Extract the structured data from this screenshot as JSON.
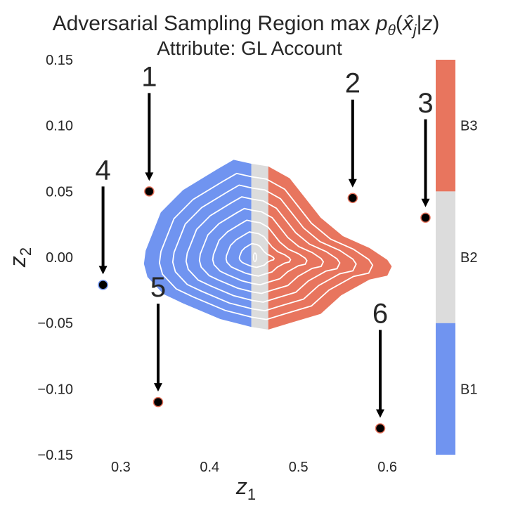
{
  "chart_data": {
    "type": "contour",
    "title_line1": "Adversarial Sampling Region max",
    "title_math": {
      "p": "p",
      "theta": "θ",
      "open": "(",
      "xhat": "x̂",
      "j": "j",
      "bar": "|",
      "z": "z",
      "close": ")"
    },
    "title_line2": "Attribute: GL Account",
    "xlabel": "z",
    "xlabel_sub": "1",
    "ylabel": "z",
    "ylabel_sub": "2",
    "xlim": [
      0.255,
      0.645
    ],
    "ylim": [
      -0.15,
      0.15
    ],
    "x_ticks": [
      {
        "value": 0.3,
        "label": "0.3"
      },
      {
        "value": 0.4,
        "label": "0.4"
      },
      {
        "value": 0.5,
        "label": "0.5"
      },
      {
        "value": 0.6,
        "label": "0.6"
      }
    ],
    "y_ticks": [
      {
        "value": 0.15,
        "label": "0.15"
      },
      {
        "value": 0.1,
        "label": "0.10"
      },
      {
        "value": 0.05,
        "label": "0.05"
      },
      {
        "value": 0.0,
        "label": "0.00"
      },
      {
        "value": -0.05,
        "label": "−0.05"
      },
      {
        "value": -0.1,
        "label": "−0.10"
      },
      {
        "value": -0.15,
        "label": "−0.15"
      }
    ],
    "grid": false,
    "colors": {
      "B1": "#7094f0",
      "B2": "#dcdcdc",
      "B3": "#e8755e",
      "contour": "#ffffff",
      "marker": "#000000",
      "arrow": "#000000"
    },
    "density_region": {
      "split_B1_B2": 0.447,
      "split_B2_B3": 0.466,
      "outline": [
        [
          0.409,
          0.067
        ],
        [
          0.427,
          0.074
        ],
        [
          0.447,
          0.071
        ],
        [
          0.466,
          0.069
        ],
        [
          0.49,
          0.06
        ],
        [
          0.525,
          0.03
        ],
        [
          0.55,
          0.016
        ],
        [
          0.58,
          0.007
        ],
        [
          0.6,
          -0.002
        ],
        [
          0.605,
          -0.007
        ],
        [
          0.6,
          -0.014
        ],
        [
          0.58,
          -0.017
        ],
        [
          0.548,
          -0.029
        ],
        [
          0.525,
          -0.043
        ],
        [
          0.49,
          -0.05
        ],
        [
          0.466,
          -0.055
        ],
        [
          0.447,
          -0.053
        ],
        [
          0.412,
          -0.047
        ],
        [
          0.37,
          -0.035
        ],
        [
          0.348,
          -0.028
        ],
        [
          0.33,
          -0.015
        ],
        [
          0.326,
          -0.005
        ],
        [
          0.328,
          0.005
        ],
        [
          0.345,
          0.034
        ],
        [
          0.37,
          0.051
        ]
      ],
      "center": [
        0.451,
        0.0
      ],
      "contour_levels": [
        0.14,
        0.26,
        0.38,
        0.5,
        0.62,
        0.74,
        0.86
      ]
    },
    "points": [
      {
        "label": "1",
        "x": 0.332,
        "y": 0.05,
        "colored_by": "B3"
      },
      {
        "label": "2",
        "x": 0.561,
        "y": 0.045,
        "colored_by": "B3"
      },
      {
        "label": "3",
        "x": 0.643,
        "y": 0.03,
        "colored_by": "B3"
      },
      {
        "label": "4",
        "x": 0.28,
        "y": -0.021,
        "colored_by": "B1"
      },
      {
        "label": "5",
        "x": 0.342,
        "y": -0.11,
        "colored_by": "B3"
      },
      {
        "label": "6",
        "x": 0.592,
        "y": -0.13,
        "colored_by": "B3"
      }
    ],
    "colorbar": {
      "categories": [
        "B1",
        "B2",
        "B3"
      ]
    }
  }
}
